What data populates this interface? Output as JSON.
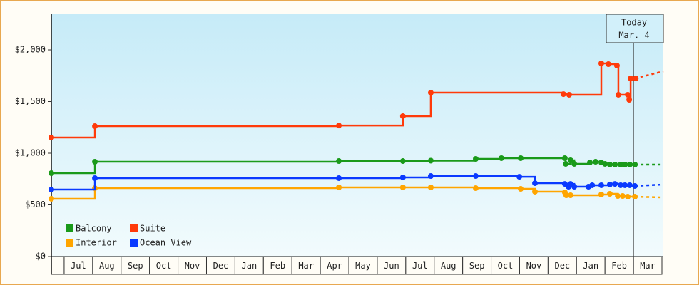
{
  "chart_data": {
    "type": "step-line",
    "yticks": [
      {
        "value": 0,
        "label": "$0"
      },
      {
        "value": 500,
        "label": "$500"
      },
      {
        "value": 1000,
        "label": "$1,000"
      },
      {
        "value": 1500,
        "label": "$1,500"
      },
      {
        "value": 2000,
        "label": "$2,000"
      }
    ],
    "ylim": [
      0,
      2345
    ],
    "xlim": [
      0.55,
      22.05
    ],
    "xticks": [
      {
        "value": 1.5,
        "label": "Jul"
      },
      {
        "value": 2.5,
        "label": "Aug"
      },
      {
        "value": 3.5,
        "label": "Sep"
      },
      {
        "value": 4.5,
        "label": "Oct"
      },
      {
        "value": 5.5,
        "label": "Nov"
      },
      {
        "value": 6.5,
        "label": "Dec"
      },
      {
        "value": 7.5,
        "label": "Jan"
      },
      {
        "value": 8.5,
        "label": "Feb"
      },
      {
        "value": 9.5,
        "label": "Mar"
      },
      {
        "value": 10.5,
        "label": "Apr"
      },
      {
        "value": 11.5,
        "label": "May"
      },
      {
        "value": 12.5,
        "label": "Jun"
      },
      {
        "value": 13.5,
        "label": "Jul"
      },
      {
        "value": 14.5,
        "label": "Aug"
      },
      {
        "value": 15.5,
        "label": "Sep"
      },
      {
        "value": 16.5,
        "label": "Oct"
      },
      {
        "value": 17.5,
        "label": "Nov"
      },
      {
        "value": 18.5,
        "label": "Dec"
      },
      {
        "value": 19.5,
        "label": "Jan"
      },
      {
        "value": 20.5,
        "label": "Feb"
      },
      {
        "value": 21.5,
        "label": "Mar"
      }
    ],
    "today": {
      "x": 21.0,
      "label": "Today",
      "date": "Mar. 4"
    },
    "legend": "lower-left",
    "forecast_x": [
      21.05,
      22.05
    ],
    "series": [
      {
        "name": "Balcony",
        "color": "#1a9a1a",
        "x": [
          0.55,
          2.08,
          10.65,
          12.9,
          13.88,
          15.46,
          16.36,
          17.04,
          18.59,
          18.62,
          18.79,
          18.92,
          19.47,
          19.67,
          19.87,
          20.0,
          20.17,
          20.35,
          20.55,
          20.7,
          20.87,
          21.05
        ],
        "values": [
          807,
          917,
          924,
          924,
          928,
          945,
          952,
          952,
          952,
          897,
          931,
          897,
          910,
          917,
          910,
          897,
          890,
          890,
          890,
          890,
          890,
          890
        ],
        "forecast_values": [
          890,
          890
        ]
      },
      {
        "name": "Suite",
        "color": "#ff3a0a",
        "x": [
          0.55,
          2.08,
          10.65,
          12.9,
          13.88,
          18.54,
          18.74,
          19.87,
          20.12,
          20.42,
          20.47,
          20.8,
          20.85,
          20.9,
          21.08
        ],
        "values": [
          1152,
          1262,
          1268,
          1359,
          1586,
          1572,
          1566,
          1869,
          1862,
          1848,
          1566,
          1566,
          1517,
          1724,
          1724
        ],
        "forecast_values": [
          1724,
          1793
        ]
      },
      {
        "name": "Interior",
        "color": "#ffa500",
        "x": [
          0.55,
          2.08,
          10.65,
          12.9,
          13.88,
          15.46,
          17.04,
          17.54,
          18.59,
          18.64,
          18.79,
          19.87,
          20.17,
          20.45,
          20.62,
          20.8,
          21.05
        ],
        "values": [
          559,
          662,
          669,
          669,
          669,
          662,
          655,
          628,
          621,
          593,
          593,
          600,
          607,
          586,
          586,
          579,
          579
        ],
        "forecast_values": [
          579,
          572
        ]
      },
      {
        "name": "Ocean View",
        "color": "#0a3aff",
        "x": [
          0.55,
          2.08,
          10.65,
          12.9,
          13.88,
          15.46,
          16.99,
          17.54,
          18.59,
          18.72,
          18.79,
          18.92,
          19.42,
          19.55,
          19.87,
          20.17,
          20.35,
          20.55,
          20.7,
          20.87,
          21.05
        ],
        "values": [
          648,
          759,
          759,
          766,
          779,
          779,
          772,
          710,
          703,
          676,
          703,
          676,
          676,
          690,
          690,
          697,
          703,
          690,
          690,
          690,
          683
        ],
        "forecast_values": [
          683,
          697
        ]
      }
    ]
  }
}
